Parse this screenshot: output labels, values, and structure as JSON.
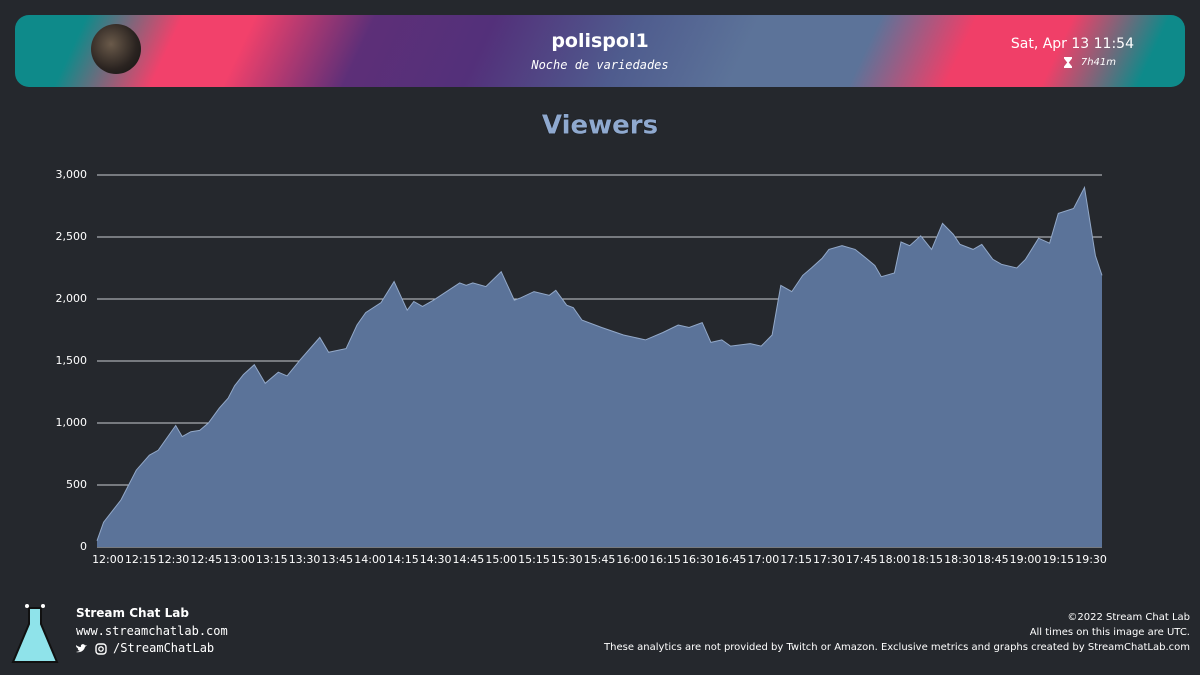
{
  "header": {
    "channel": "polispol1",
    "subtitle": "Noche de variedades",
    "date": "Sat, Apr 13 11:54",
    "duration": "7h41m"
  },
  "chart_data": {
    "type": "area",
    "title": "Viewers",
    "color": "#5b7399",
    "line_color": "#93a9c9",
    "grid": true,
    "x": [
      "11:55",
      "11:58",
      "12:06",
      "12:13",
      "12:19",
      "12:23",
      "12:31",
      "12:34",
      "12:38",
      "12:42",
      "12:46",
      "12:51",
      "12:55",
      "12:58",
      "13:02",
      "13:07",
      "13:12",
      "13:18",
      "13:22",
      "13:28",
      "13:37",
      "13:41",
      "13:49",
      "13:54",
      "13:58",
      "14:05",
      "14:11",
      "14:17",
      "14:20",
      "14:24",
      "14:29",
      "14:35",
      "14:41",
      "14:44",
      "14:47",
      "14:53",
      "15:00",
      "15:06",
      "15:09",
      "15:15",
      "15:22",
      "15:25",
      "15:30",
      "15:33",
      "15:37",
      "15:46",
      "15:56",
      "16:06",
      "16:14",
      "16:21",
      "16:26",
      "16:32",
      "16:36",
      "16:41",
      "16:45",
      "16:54",
      "16:59",
      "17:04",
      "17:08",
      "17:13",
      "17:18",
      "17:22",
      "17:27",
      "17:30",
      "17:36",
      "17:42",
      "17:47",
      "17:51",
      "17:54",
      "18:00",
      "18:03",
      "18:07",
      "18:12",
      "18:17",
      "18:22",
      "18:27",
      "18:30",
      "18:36",
      "18:40",
      "18:45",
      "18:49",
      "18:56",
      "19:00",
      "19:06",
      "19:11",
      "19:15",
      "19:22",
      "19:27",
      "19:32",
      "19:35"
    ],
    "values": [
      50,
      200,
      380,
      620,
      740,
      780,
      980,
      890,
      930,
      940,
      1000,
      1120,
      1200,
      1300,
      1390,
      1470,
      1320,
      1410,
      1380,
      1510,
      1690,
      1570,
      1600,
      1790,
      1890,
      1970,
      2140,
      1910,
      1980,
      1940,
      1990,
      2060,
      2130,
      2110,
      2130,
      2100,
      2220,
      1990,
      2010,
      2060,
      2030,
      2070,
      1950,
      1930,
      1830,
      1770,
      1710,
      1670,
      1730,
      1790,
      1770,
      1810,
      1650,
      1670,
      1620,
      1640,
      1620,
      1710,
      2110,
      2060,
      2190,
      2250,
      2330,
      2400,
      2430,
      2400,
      2330,
      2270,
      2180,
      2210,
      2460,
      2430,
      2510,
      2400,
      2610,
      2520,
      2440,
      2400,
      2440,
      2320,
      2280,
      2250,
      2320,
      2490,
      2450,
      2690,
      2730,
      2900,
      2350,
      2190
    ],
    "xlim": [
      "11:55",
      "19:35"
    ],
    "xticks": [
      "12:00",
      "12:15",
      "12:30",
      "12:45",
      "13:00",
      "13:15",
      "13:30",
      "13:45",
      "14:00",
      "14:15",
      "14:30",
      "14:45",
      "15:00",
      "15:15",
      "15:30",
      "15:45",
      "16:00",
      "16:15",
      "16:30",
      "16:45",
      "17:00",
      "17:15",
      "17:30",
      "17:45",
      "18:00",
      "18:15",
      "18:30",
      "18:45",
      "19:00",
      "19:15",
      "19:30"
    ],
    "ylim": [
      0,
      3000
    ],
    "yticks": [
      0,
      500,
      {
        "value": 1000,
        "label": "1,000"
      },
      {
        "value": 1500,
        "label": "1,500"
      },
      {
        "value": 2000,
        "label": "2,000"
      },
      {
        "value": 2500,
        "label": "2,500"
      },
      {
        "value": 3000,
        "label": "3,000"
      }
    ]
  },
  "footer": {
    "brand": "Stream Chat Lab",
    "website": "www.streamchatlab.com",
    "handle": "/StreamChatLab",
    "copyright": "©2022 Stream Chat Lab",
    "timezone": "All times on this image are UTC.",
    "disclaimer": "These analytics are not provided by Twitch or Amazon. Exclusive metrics and graphs created by StreamChatLab.com"
  }
}
